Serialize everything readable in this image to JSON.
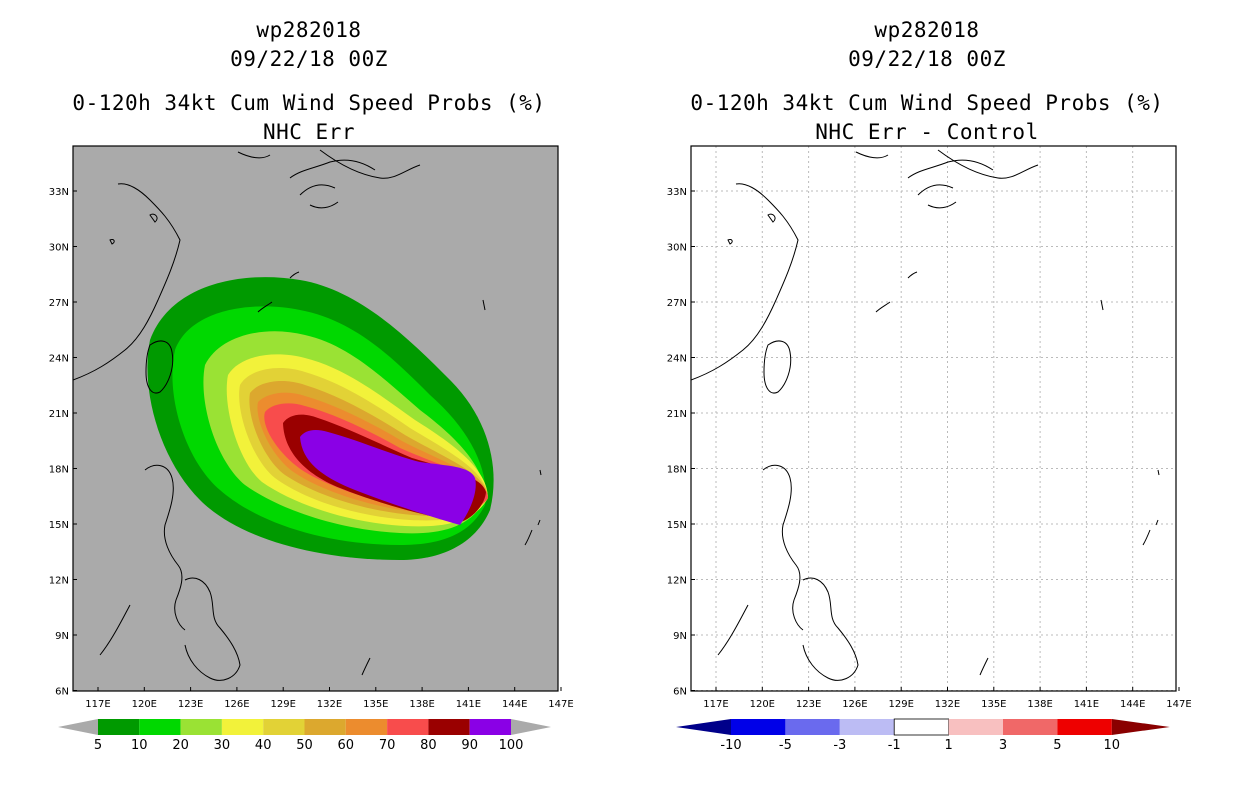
{
  "left_panel": {
    "storm_id": "wp282018",
    "datetime": "09/22/18 00Z",
    "product": "0-120h 34kt Cum Wind Speed Probs (%)",
    "subtitle": "NHC Err",
    "background_color": "#aaaaaa",
    "colorbar": {
      "labels": [
        "5",
        "10",
        "20",
        "30",
        "40",
        "50",
        "60",
        "70",
        "80",
        "90",
        "100"
      ],
      "colors": [
        "#009a00",
        "#00d800",
        "#9ae234",
        "#f2f23a",
        "#e2d236",
        "#dca82e",
        "#ec8c2e",
        "#f84c4c",
        "#9a0000",
        "#8a00e6"
      ],
      "end_color": "#aaaaaa"
    }
  },
  "right_panel": {
    "storm_id": "wp282018",
    "datetime": "09/22/18 00Z",
    "product": "0-120h 34kt Cum Wind Speed Probs (%)",
    "subtitle": "NHC Err - Control",
    "background_color": "#ffffff",
    "colorbar": {
      "labels": [
        "-10",
        "-5",
        "-3",
        "-1",
        "1",
        "3",
        "5",
        "10"
      ],
      "colors": [
        "#00008a",
        "#0000e8",
        "#6a6aee",
        "#bcbcf4",
        "#ffffff",
        "#f8c0c0",
        "#f06868",
        "#ee0000",
        "#8a0000"
      ]
    }
  },
  "map": {
    "lon_labels": [
      "117E",
      "120E",
      "123E",
      "126E",
      "129E",
      "132E",
      "135E",
      "138E",
      "141E",
      "144E",
      "147E"
    ],
    "lat_labels": [
      "33N",
      "30N",
      "27N",
      "24N",
      "21N",
      "18N",
      "15N",
      "12N",
      "9N",
      "6N"
    ]
  }
}
